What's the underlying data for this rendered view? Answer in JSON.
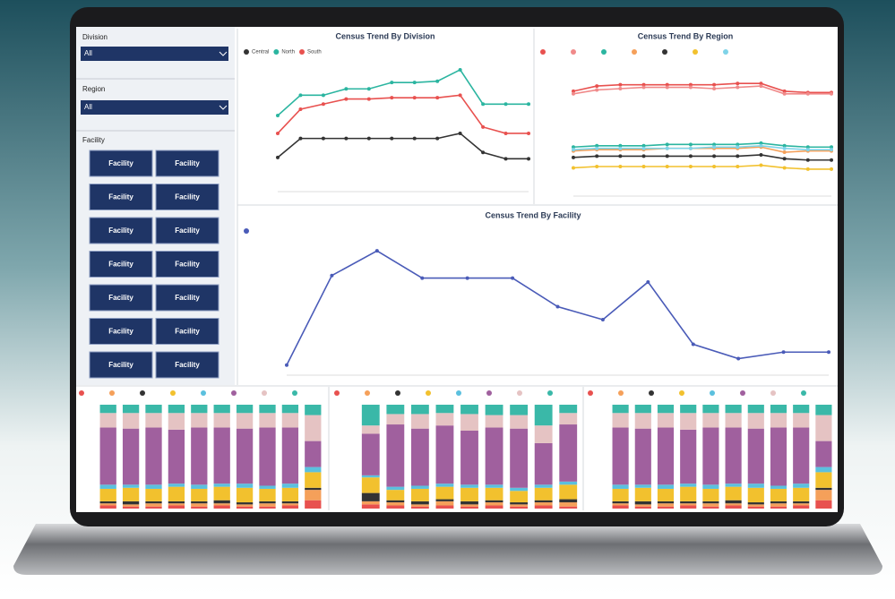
{
  "filters": [
    {
      "label": "Division",
      "value": "All"
    },
    {
      "label": "Region",
      "value": "All"
    }
  ],
  "facility_slicer": {
    "label": "Facility",
    "buttons": [
      "Facility",
      "Facility",
      "Facility",
      "Facility",
      "Facility",
      "Facility",
      "Facility",
      "Facility",
      "Facility",
      "Facility",
      "Facility",
      "Facility",
      "Facility",
      "Facility"
    ]
  },
  "chart_data": [
    {
      "type": "line",
      "title": "Census Trend By Division",
      "categories": [
        null,
        null,
        null,
        null,
        null,
        null,
        null,
        null,
        null,
        null,
        null,
        null
      ],
      "ylim": [
        0,
        100
      ],
      "series": [
        {
          "name": "Central",
          "color": "#333333",
          "values": [
            24,
            39,
            39,
            39,
            39,
            39,
            39,
            39,
            43,
            28,
            23,
            23
          ]
        },
        {
          "name": "North",
          "color": "#2bb5a0",
          "values": [
            57,
            73,
            73,
            78,
            78,
            83,
            83,
            84,
            93,
            66,
            66,
            66
          ]
        },
        {
          "name": "South",
          "color": "#e8514f",
          "values": [
            43,
            62,
            66,
            70,
            70,
            71,
            71,
            71,
            73,
            48,
            43,
            43
          ]
        }
      ]
    },
    {
      "type": "line",
      "title": "Census Trend By Region",
      "categories": [
        null,
        null,
        null,
        null,
        null,
        null,
        null,
        null,
        null,
        null,
        null,
        null
      ],
      "ylim": [
        0,
        100
      ],
      "series": [
        {
          "color": "#e8514f",
          "values": [
            78,
            82,
            83,
            83,
            83,
            83,
            83,
            84,
            84,
            78,
            77,
            77
          ]
        },
        {
          "color": "#f08a8a",
          "values": [
            76,
            79,
            80,
            81,
            81,
            81,
            80,
            81,
            82,
            76,
            76,
            76
          ]
        },
        {
          "color": "#2bb5a0",
          "values": [
            35,
            36,
            36,
            36,
            37,
            37,
            37,
            37,
            38,
            36,
            35,
            35
          ]
        },
        {
          "color": "#f5a05a",
          "values": [
            32,
            33,
            33,
            33,
            34,
            34,
            34,
            34,
            35,
            31,
            32,
            32
          ]
        },
        {
          "color": "#333333",
          "values": [
            27,
            28,
            28,
            28,
            28,
            28,
            28,
            28,
            29,
            26,
            25,
            25
          ]
        },
        {
          "color": "#f2c12e",
          "values": [
            19,
            20,
            20,
            20,
            20,
            20,
            20,
            20,
            21,
            19,
            18,
            18
          ]
        },
        {
          "color": "#7fd3e8",
          "values": [
            33,
            34,
            34,
            34,
            34,
            34,
            35,
            35,
            36,
            34,
            33,
            33
          ]
        }
      ]
    },
    {
      "type": "line",
      "title": "Census Trend By Facility",
      "categories": [
        null,
        null,
        null,
        null,
        null,
        null,
        null,
        null,
        null,
        null,
        null,
        null,
        null
      ],
      "ylim": [
        0,
        100
      ],
      "series": [
        {
          "color": "#4a5bb8",
          "values": [
            5,
            74,
            93,
            72,
            72,
            72,
            50,
            40,
            69,
            21,
            10,
            15,
            15
          ]
        }
      ]
    },
    {
      "type": "stacked_bar",
      "categories": [
        null,
        null,
        null,
        null,
        null,
        null,
        null,
        null,
        null,
        null
      ],
      "ylim": [
        0,
        100
      ],
      "series": [
        {
          "color": "#e8514f",
          "values": [
            3,
            2,
            2,
            3,
            2,
            3,
            2,
            2,
            3,
            8
          ]
        },
        {
          "color": "#f5a05a",
          "values": [
            2,
            2,
            3,
            2,
            3,
            2,
            2,
            3,
            2,
            10
          ]
        },
        {
          "color": "#333333",
          "values": [
            2,
            3,
            2,
            2,
            2,
            3,
            2,
            2,
            2,
            2
          ]
        },
        {
          "color": "#f2c12e",
          "values": [
            12,
            13,
            12,
            14,
            12,
            13,
            14,
            12,
            13,
            15
          ]
        },
        {
          "color": "#5bc0de",
          "values": [
            4,
            3,
            4,
            3,
            4,
            3,
            4,
            3,
            4,
            5
          ]
        },
        {
          "color": "#a0609e",
          "values": [
            55,
            54,
            55,
            52,
            55,
            54,
            53,
            56,
            54,
            25
          ]
        },
        {
          "color": "#e5c3c3",
          "values": [
            14,
            15,
            14,
            16,
            14,
            14,
            15,
            14,
            14,
            25
          ]
        },
        {
          "color": "#3ab8a8",
          "values": [
            8,
            8,
            8,
            8,
            8,
            8,
            8,
            8,
            8,
            10
          ]
        }
      ]
    },
    {
      "type": "stacked_bar",
      "categories": [
        null,
        null,
        null,
        null,
        null,
        null,
        null,
        null,
        null
      ],
      "ylim": [
        0,
        100
      ],
      "series": [
        {
          "color": "#e8514f",
          "values": [
            4,
            3,
            2,
            3,
            2,
            3,
            2,
            3,
            2
          ]
        },
        {
          "color": "#f5a05a",
          "values": [
            3,
            3,
            2,
            4,
            2,
            3,
            2,
            3,
            4
          ]
        },
        {
          "color": "#333333",
          "values": [
            8,
            2,
            3,
            2,
            3,
            2,
            2,
            2,
            3
          ]
        },
        {
          "color": "#f2c12e",
          "values": [
            15,
            10,
            12,
            12,
            13,
            12,
            11,
            12,
            14
          ]
        },
        {
          "color": "#5bc0de",
          "values": [
            2,
            3,
            3,
            3,
            3,
            3,
            3,
            3,
            3
          ]
        },
        {
          "color": "#a0609e",
          "values": [
            40,
            60,
            55,
            56,
            52,
            55,
            57,
            40,
            55
          ]
        },
        {
          "color": "#e5c3c3",
          "values": [
            8,
            10,
            14,
            12,
            16,
            12,
            13,
            17,
            11
          ]
        },
        {
          "color": "#3ab8a8",
          "values": [
            20,
            9,
            9,
            8,
            9,
            10,
            10,
            20,
            8
          ]
        }
      ]
    },
    {
      "type": "stacked_bar",
      "categories": [
        null,
        null,
        null,
        null,
        null,
        null,
        null,
        null,
        null,
        null
      ],
      "ylim": [
        0,
        100
      ],
      "series": [
        {
          "color": "#e8514f",
          "values": [
            3,
            2,
            2,
            3,
            2,
            3,
            2,
            2,
            3,
            8
          ]
        },
        {
          "color": "#f5a05a",
          "values": [
            2,
            2,
            3,
            2,
            3,
            2,
            2,
            3,
            2,
            10
          ]
        },
        {
          "color": "#333333",
          "values": [
            2,
            3,
            2,
            2,
            2,
            3,
            2,
            2,
            2,
            2
          ]
        },
        {
          "color": "#f2c12e",
          "values": [
            12,
            13,
            12,
            14,
            12,
            13,
            14,
            12,
            13,
            15
          ]
        },
        {
          "color": "#5bc0de",
          "values": [
            4,
            3,
            4,
            3,
            4,
            3,
            4,
            3,
            4,
            5
          ]
        },
        {
          "color": "#a0609e",
          "values": [
            55,
            54,
            55,
            52,
            55,
            54,
            53,
            56,
            54,
            25
          ]
        },
        {
          "color": "#e5c3c3",
          "values": [
            14,
            15,
            14,
            16,
            14,
            14,
            15,
            14,
            14,
            25
          ]
        },
        {
          "color": "#3ab8a8",
          "values": [
            8,
            8,
            8,
            8,
            8,
            8,
            8,
            8,
            8,
            10
          ]
        }
      ]
    }
  ]
}
